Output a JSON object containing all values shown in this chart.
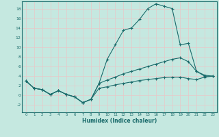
{
  "xlabel": "Humidex (Indice chaleur)",
  "xlim": [
    -0.5,
    23.5
  ],
  "ylim": [
    -3.5,
    19.5
  ],
  "yticks": [
    -2,
    0,
    2,
    4,
    6,
    8,
    10,
    12,
    14,
    16,
    18
  ],
  "xticks": [
    0,
    1,
    2,
    3,
    4,
    5,
    6,
    7,
    8,
    9,
    10,
    11,
    12,
    13,
    14,
    15,
    16,
    17,
    18,
    19,
    20,
    21,
    22,
    23
  ],
  "bg_color": "#c5e8e0",
  "line_color": "#1a6b6b",
  "grid_color": "#e8c8c8",
  "line1_x": [
    0,
    1,
    2,
    3,
    4,
    5,
    6,
    7,
    8,
    9,
    10,
    11,
    12,
    13,
    14,
    15,
    16,
    17,
    18,
    19,
    20,
    21,
    22,
    23
  ],
  "line1_y": [
    3,
    1.5,
    1.2,
    0.2,
    1.0,
    0.2,
    -0.3,
    -1.5,
    -0.8,
    2.5,
    7.5,
    10.5,
    13.5,
    14.0,
    15.8,
    18.0,
    19.0,
    18.5,
    18.0,
    10.5,
    10.8,
    5.0,
    4.0,
    4.0
  ],
  "line2_x": [
    0,
    1,
    2,
    3,
    4,
    5,
    6,
    7,
    8,
    9,
    10,
    11,
    12,
    13,
    14,
    15,
    16,
    17,
    18,
    19,
    20,
    21,
    22,
    23
  ],
  "line2_y": [
    3.0,
    1.5,
    1.2,
    0.2,
    1.0,
    0.2,
    -0.3,
    -1.5,
    -0.8,
    2.5,
    3.2,
    3.8,
    4.5,
    5.0,
    5.5,
    6.0,
    6.5,
    7.0,
    7.5,
    7.8,
    7.0,
    5.0,
    4.2,
    4.0
  ],
  "line3_x": [
    0,
    1,
    2,
    3,
    4,
    5,
    6,
    7,
    8,
    9,
    10,
    11,
    12,
    13,
    14,
    15,
    16,
    17,
    18,
    19,
    20,
    21,
    22,
    23
  ],
  "line3_y": [
    3.0,
    1.5,
    1.2,
    0.2,
    1.0,
    0.2,
    -0.3,
    -1.5,
    -0.8,
    1.5,
    1.8,
    2.2,
    2.5,
    2.8,
    3.1,
    3.3,
    3.5,
    3.7,
    3.8,
    3.8,
    3.5,
    3.3,
    3.8,
    4.0
  ]
}
